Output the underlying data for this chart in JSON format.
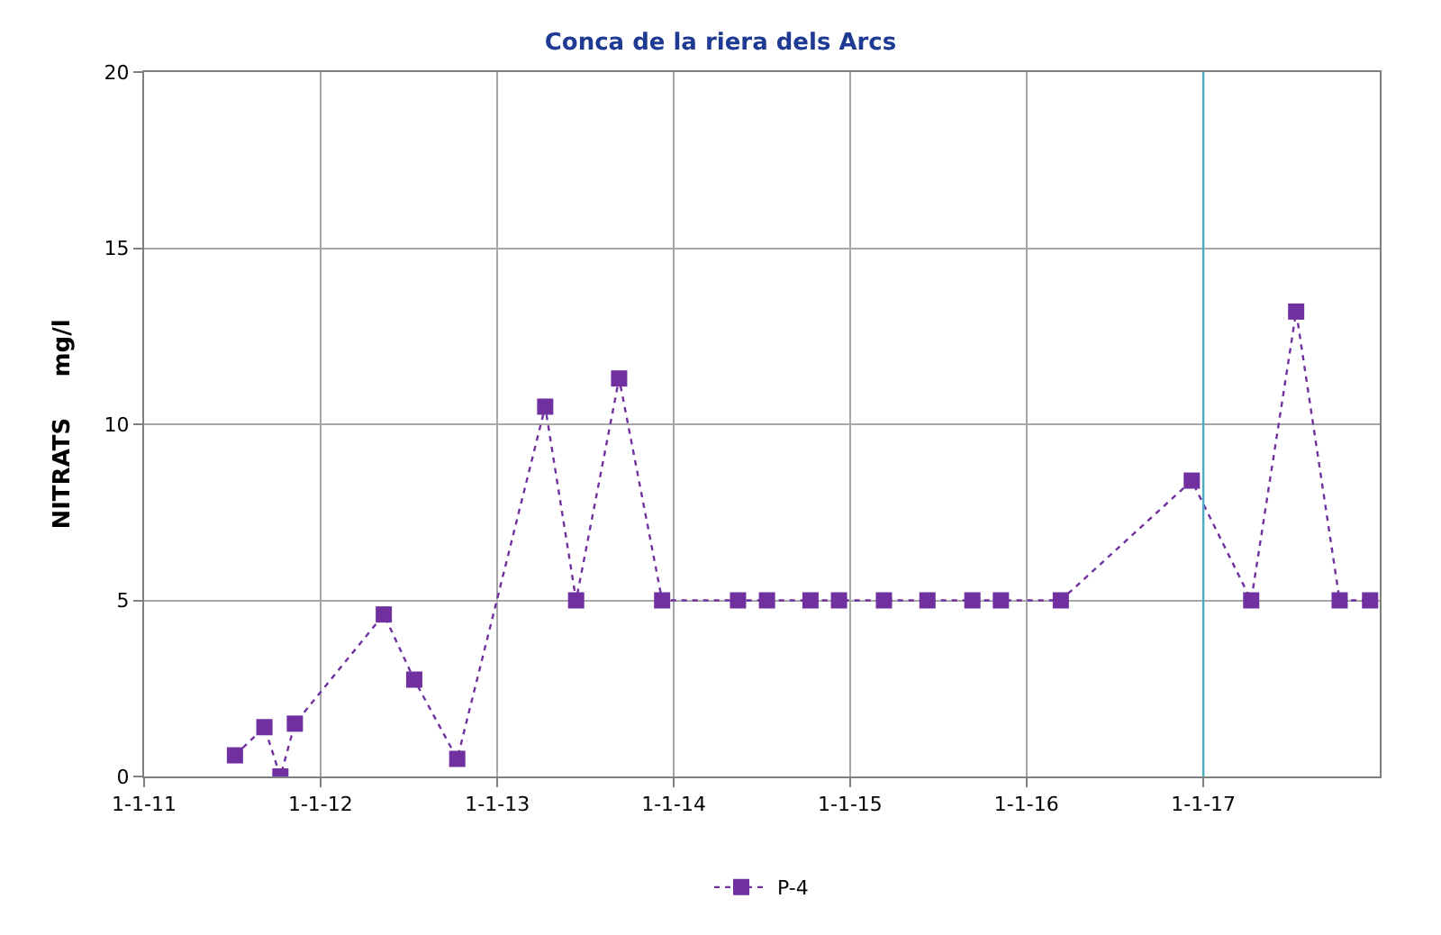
{
  "chart_data": {
    "type": "line",
    "title": "Conca de la riera dels Arcs",
    "ylabel": "NITRATS     mg/l",
    "x": [
      "2011-07-08",
      "2011-09-07",
      "2011-10-10",
      "2011-11-09",
      "2012-05-11",
      "2012-07-13",
      "2012-10-10",
      "2013-04-10",
      "2013-06-13",
      "2013-09-10",
      "2013-12-08",
      "2014-05-14",
      "2014-07-13",
      "2014-10-11",
      "2014-12-09",
      "2015-03-12",
      "2015-06-10",
      "2015-09-11",
      "2015-11-09",
      "2016-03-12",
      "2016-12-08",
      "2017-04-10",
      "2017-07-12",
      "2017-10-10",
      "2017-12-12"
    ],
    "series": [
      {
        "name": "P-4",
        "color": "#7030a0",
        "values": [
          0.6,
          1.4,
          0,
          1.5,
          4.6,
          2.75,
          0.5,
          10.5,
          5,
          11.3,
          5,
          5,
          5,
          5,
          5,
          5,
          5,
          5,
          5,
          5,
          8.4,
          5,
          13.2,
          5,
          5
        ]
      }
    ],
    "xlim": [
      "2011-01-01",
      "2018-01-01"
    ],
    "xticks": [
      {
        "value": "2011-01-01",
        "label": "1-1-11"
      },
      {
        "value": "2012-01-01",
        "label": "1-1-12"
      },
      {
        "value": "2013-01-01",
        "label": "1-1-13"
      },
      {
        "value": "2014-01-01",
        "label": "1-1-14"
      },
      {
        "value": "2015-01-01",
        "label": "1-1-15"
      },
      {
        "value": "2016-01-01",
        "label": "1-1-16"
      },
      {
        "value": "2017-01-01",
        "label": "1-1-17"
      }
    ],
    "ylim": [
      0,
      20
    ],
    "yticks": [
      0,
      5,
      10,
      15,
      20
    ],
    "ref_lines": [
      {
        "axis": "x",
        "value": "2017-01-01",
        "label": null,
        "color": "#4bacc6"
      }
    ],
    "grid": true,
    "legend": "bottom",
    "marker": "square",
    "line_style": "dotted"
  }
}
